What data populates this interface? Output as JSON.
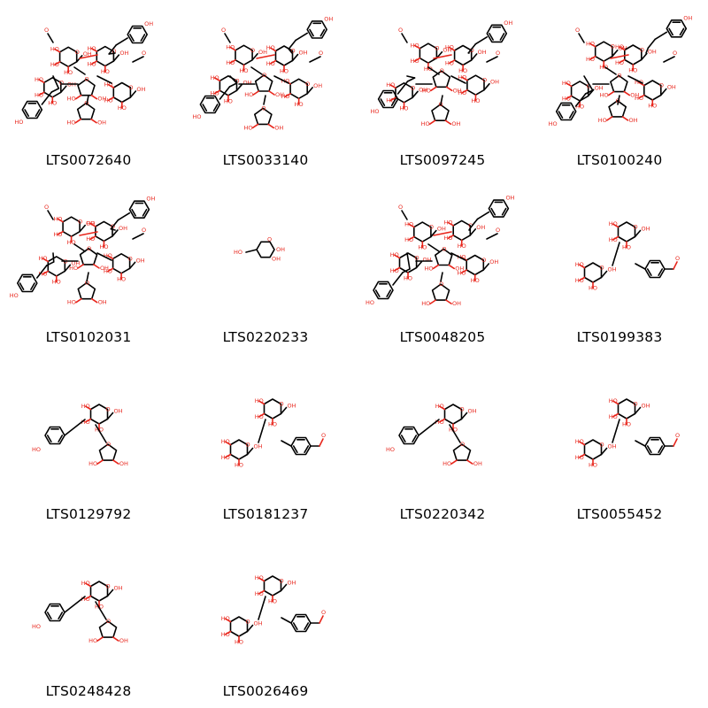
{
  "molecules": [
    {
      "id": "LTS0072640",
      "size": "large"
    },
    {
      "id": "LTS0033140",
      "size": "large"
    },
    {
      "id": "LTS0097245",
      "size": "large"
    },
    {
      "id": "LTS0100240",
      "size": "large"
    },
    {
      "id": "LTS0102031",
      "size": "large"
    },
    {
      "id": "LTS0220233",
      "size": "small"
    },
    {
      "id": "LTS0048205",
      "size": "large"
    },
    {
      "id": "LTS0199383",
      "size": "medium"
    },
    {
      "id": "LTS0129792",
      "size": "medium"
    },
    {
      "id": "LTS0181237",
      "size": "medium"
    },
    {
      "id": "LTS0220342",
      "size": "medium"
    },
    {
      "id": "LTS0055452",
      "size": "medium"
    },
    {
      "id": "LTS0248428",
      "size": "medium"
    },
    {
      "id": "LTS0026469",
      "size": "medium"
    }
  ],
  "colors": {
    "heteroatom": "#e8261c",
    "bond": "#000000",
    "background": "#ffffff"
  }
}
